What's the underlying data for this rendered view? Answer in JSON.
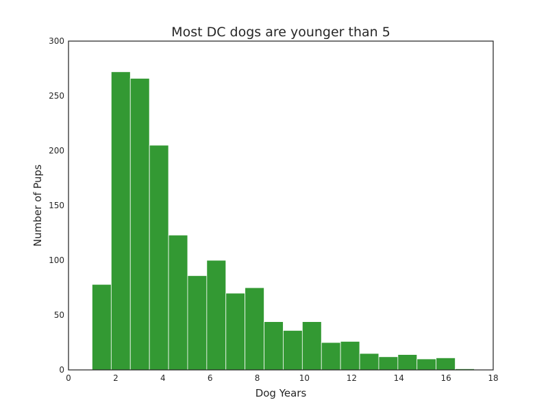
{
  "chart_data": {
    "type": "bar",
    "title": "Most DC dogs are younger than 5",
    "xlabel": "Dog Years",
    "ylabel": "Number of Pups",
    "xlim": [
      0,
      18
    ],
    "ylim": [
      0,
      300
    ],
    "xticks": [
      0,
      2,
      4,
      6,
      8,
      10,
      12,
      14,
      16,
      18
    ],
    "yticks": [
      0,
      50,
      100,
      150,
      200,
      250,
      300
    ],
    "bar_color": "#339933",
    "bar_edge_color": "#ffffff",
    "grid": false,
    "bins": [
      {
        "start": 1.0,
        "end": 1.81,
        "value": 78
      },
      {
        "start": 1.81,
        "end": 2.62,
        "value": 272
      },
      {
        "start": 2.62,
        "end": 3.43,
        "value": 266
      },
      {
        "start": 3.43,
        "end": 4.24,
        "value": 205
      },
      {
        "start": 4.24,
        "end": 5.05,
        "value": 123
      },
      {
        "start": 5.05,
        "end": 5.86,
        "value": 86
      },
      {
        "start": 5.86,
        "end": 6.67,
        "value": 100
      },
      {
        "start": 6.67,
        "end": 7.48,
        "value": 70
      },
      {
        "start": 7.48,
        "end": 8.29,
        "value": 75
      },
      {
        "start": 8.29,
        "end": 9.1,
        "value": 44
      },
      {
        "start": 9.1,
        "end": 9.91,
        "value": 36
      },
      {
        "start": 9.91,
        "end": 10.72,
        "value": 44
      },
      {
        "start": 10.72,
        "end": 11.53,
        "value": 25
      },
      {
        "start": 11.53,
        "end": 12.34,
        "value": 26
      },
      {
        "start": 12.34,
        "end": 13.15,
        "value": 15
      },
      {
        "start": 13.15,
        "end": 13.96,
        "value": 12
      },
      {
        "start": 13.96,
        "end": 14.77,
        "value": 14
      },
      {
        "start": 14.77,
        "end": 15.58,
        "value": 10
      },
      {
        "start": 15.58,
        "end": 16.39,
        "value": 11
      },
      {
        "start": 16.39,
        "end": 17.2,
        "value": 1
      }
    ]
  }
}
